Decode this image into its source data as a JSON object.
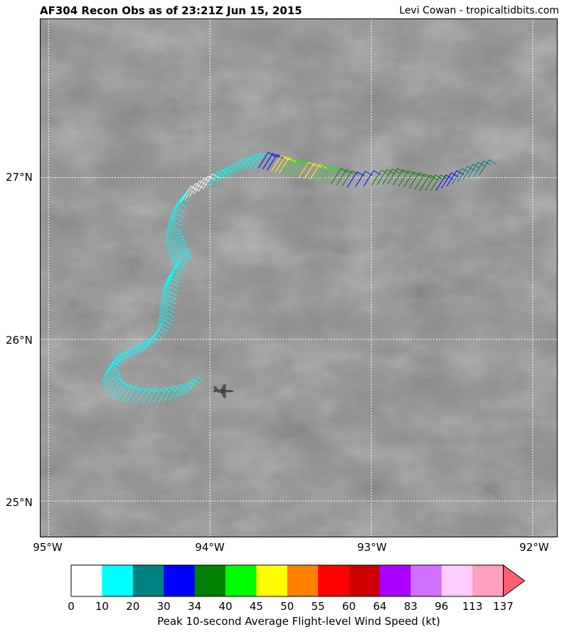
{
  "header": {
    "title": "AF304 Recon Obs as of 23:21Z Jun 15, 2015",
    "credit": "Levi Cowan - tropicaltidbits.com"
  },
  "map": {
    "lat_labels": [
      "27°N",
      "26°N",
      "25°N"
    ],
    "lon_labels": [
      "95°W",
      "94°W",
      "93°W",
      "92°W"
    ],
    "extent": {
      "lon_min": -95.05,
      "lon_max": -91.85,
      "lat_min": 24.78,
      "lat_max": 27.98
    },
    "aircraft_icon": "airplane-icon",
    "background": "grayscale satellite imagery"
  },
  "colorbar": {
    "title": "Peak 10-second Average Flight-level Wind Speed (kt)",
    "ticks": [
      "0",
      "10",
      "20",
      "30",
      "34",
      "40",
      "45",
      "50",
      "55",
      "60",
      "64",
      "83",
      "96",
      "113",
      "137"
    ],
    "colors": [
      "#ffffff",
      "#00ffff",
      "#008080",
      "#0000ff",
      "#008000",
      "#00ff00",
      "#ffff00",
      "#ff8000",
      "#ff0000",
      "#cc0000",
      "#aa00ff",
      "#d070ff",
      "#ffccff",
      "#ffa0c0",
      "#ff6070"
    ]
  },
  "chart_data": {
    "type": "map",
    "track_lon_lat": [
      [
        -94.14,
        25.67
      ],
      [
        -94.22,
        25.63
      ],
      [
        -94.32,
        25.61
      ],
      [
        -94.42,
        25.6
      ],
      [
        -94.52,
        25.61
      ],
      [
        -94.6,
        25.63
      ],
      [
        -94.65,
        25.68
      ],
      [
        -94.67,
        25.74
      ],
      [
        -94.64,
        25.8
      ],
      [
        -94.58,
        25.84
      ],
      [
        -94.5,
        25.88
      ],
      [
        -94.42,
        25.92
      ],
      [
        -94.37,
        25.98
      ],
      [
        -94.33,
        26.04
      ],
      [
        -94.32,
        26.12
      ],
      [
        -94.31,
        26.2
      ],
      [
        -94.3,
        26.28
      ],
      [
        -94.28,
        26.34
      ],
      [
        -94.26,
        26.38
      ],
      [
        -94.22,
        26.43
      ],
      [
        -94.24,
        26.48
      ],
      [
        -94.26,
        26.54
      ],
      [
        -94.28,
        26.6
      ],
      [
        -94.27,
        26.68
      ],
      [
        -94.24,
        26.78
      ],
      [
        -94.18,
        26.85
      ],
      [
        -94.1,
        26.9
      ],
      [
        -94.02,
        26.94
      ],
      [
        -93.94,
        26.98
      ],
      [
        -93.86,
        27.02
      ],
      [
        -93.78,
        27.05
      ],
      [
        -93.7,
        27.06
      ],
      [
        -93.62,
        27.04
      ],
      [
        -93.55,
        27.02
      ],
      [
        -93.45,
        27.0
      ],
      [
        -93.35,
        26.98
      ],
      [
        -93.25,
        26.96
      ],
      [
        -93.15,
        26.94
      ],
      [
        -93.0,
        26.95
      ],
      [
        -92.9,
        26.96
      ],
      [
        -92.8,
        26.94
      ],
      [
        -92.7,
        26.92
      ],
      [
        -92.6,
        26.92
      ],
      [
        -92.5,
        26.96
      ],
      [
        -92.4,
        27.0
      ],
      [
        -92.3,
        27.02
      ]
    ],
    "segment_colors": [
      "#00ffff",
      "#00ffff",
      "#00ffff",
      "#00ffff",
      "#00ffff",
      "#00ffff",
      "#00ffff",
      "#00ffff",
      "#00ffff",
      "#00ffff",
      "#00ffff",
      "#00ffff",
      "#00ffff",
      "#00ffff",
      "#00ffff",
      "#00ffff",
      "#00ffff",
      "#00ffff",
      "#00ffff",
      "#00ffff",
      "#00ffff",
      "#00ffff",
      "#00ffff",
      "#00ffff",
      "#00ffff",
      "#ffffff",
      "#ffffff",
      "#00ffff",
      "#00ffff",
      "#00ffff",
      "#00ffff",
      "#0000ff",
      "#ffff00",
      "#00ff00",
      "#ffff00",
      "#00ff00",
      "#008000",
      "#0000ff",
      "#008000",
      "#008000",
      "#008000",
      "#008000",
      "#0000ff",
      "#008080",
      "#008080",
      "#008000"
    ],
    "aircraft_lon_lat": [
      -93.95,
      25.68
    ]
  }
}
